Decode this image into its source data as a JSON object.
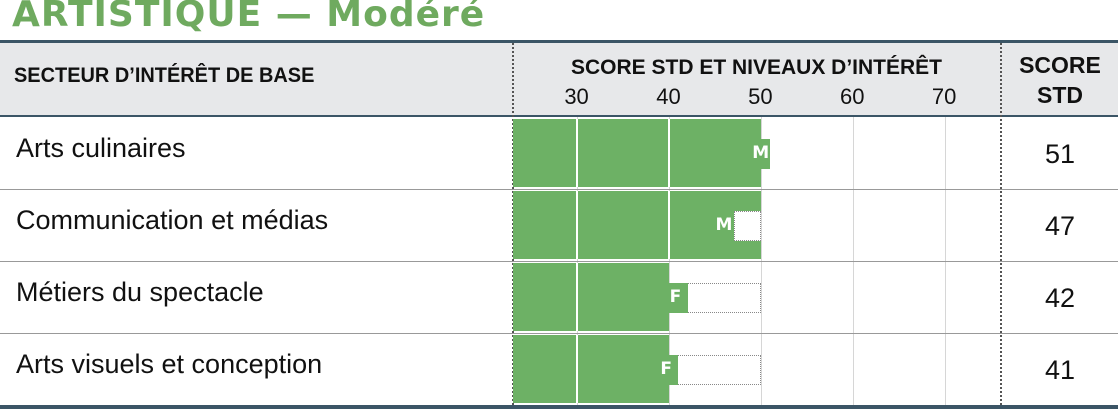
{
  "title": "ARTISTIQUE — Modéré",
  "header": {
    "sector": "SECTEUR D’INTÉRÊT DE BASE",
    "score_levels": "SCORE STD ET NIVEAUX D’INTÉRÊT",
    "std_line1": "SCORE",
    "std_line2": "STD"
  },
  "colors": {
    "title": "#6faa5f",
    "bar": "#6db165",
    "rule": "#3b5566",
    "header_bg": "#e7e8ea"
  },
  "chart_data": {
    "type": "bar",
    "orientation": "horizontal",
    "title": "ARTISTIQUE — Modéré",
    "xlim": [
      23,
      76
    ],
    "xticks": [
      30,
      40,
      50,
      60,
      70
    ],
    "categories": [
      "Arts culinaires",
      "Communication et médias",
      "Métiers du spectacle",
      "Arts visuels et conception"
    ],
    "values": [
      51,
      47,
      42,
      41
    ],
    "score_std": [
      "51",
      "47",
      "42",
      "41"
    ],
    "markers": [
      "M",
      "M",
      "F",
      "F"
    ],
    "band_ranges": [
      [
        23,
        50
      ],
      [
        23,
        50
      ],
      [
        23,
        40
      ],
      [
        23,
        40
      ]
    ]
  }
}
